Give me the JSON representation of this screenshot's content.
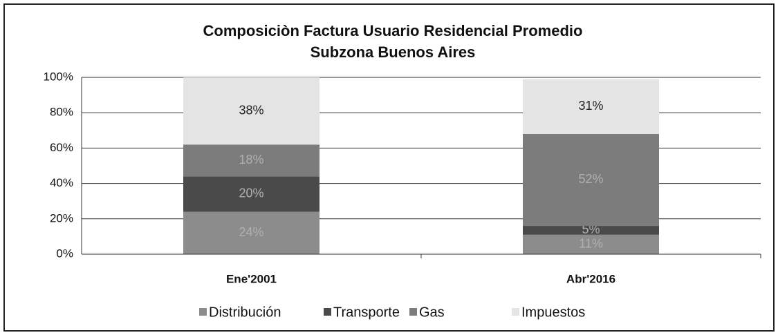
{
  "chart_data": {
    "type": "stacked_bar",
    "title": [
      "Composiciòn Factura Usuario Residencial Promedio",
      "Subzona Buenos Aires"
    ],
    "categories": [
      "Ene'2001",
      "Abr'2016"
    ],
    "series": [
      {
        "name": "Distribución",
        "color": "#8c8c8c",
        "values": [
          24,
          11
        ],
        "value_labels": [
          "24%",
          "11%"
        ]
      },
      {
        "name": "Transporte",
        "color": "#4a4a4a",
        "values": [
          20,
          5
        ],
        "value_labels": [
          "20%",
          "5%"
        ]
      },
      {
        "name": "Gas",
        "color": "#7c7c7c",
        "values": [
          18,
          52
        ],
        "value_labels": [
          "18%",
          "52%"
        ]
      },
      {
        "name": "Impuestos",
        "color": "#e4e4e4",
        "values": [
          38,
          31
        ],
        "value_labels": [
          "38%",
          "31%"
        ]
      }
    ],
    "ylim": [
      0,
      100
    ],
    "yticks": [
      {
        "value": 0,
        "label": "0%"
      },
      {
        "value": 20,
        "label": "20%"
      },
      {
        "value": 40,
        "label": "40%"
      },
      {
        "value": 60,
        "label": "60%"
      },
      {
        "value": 80,
        "label": "80%"
      },
      {
        "value": 100,
        "label": "100%"
      }
    ],
    "grid": true,
    "legend": "bottom"
  }
}
